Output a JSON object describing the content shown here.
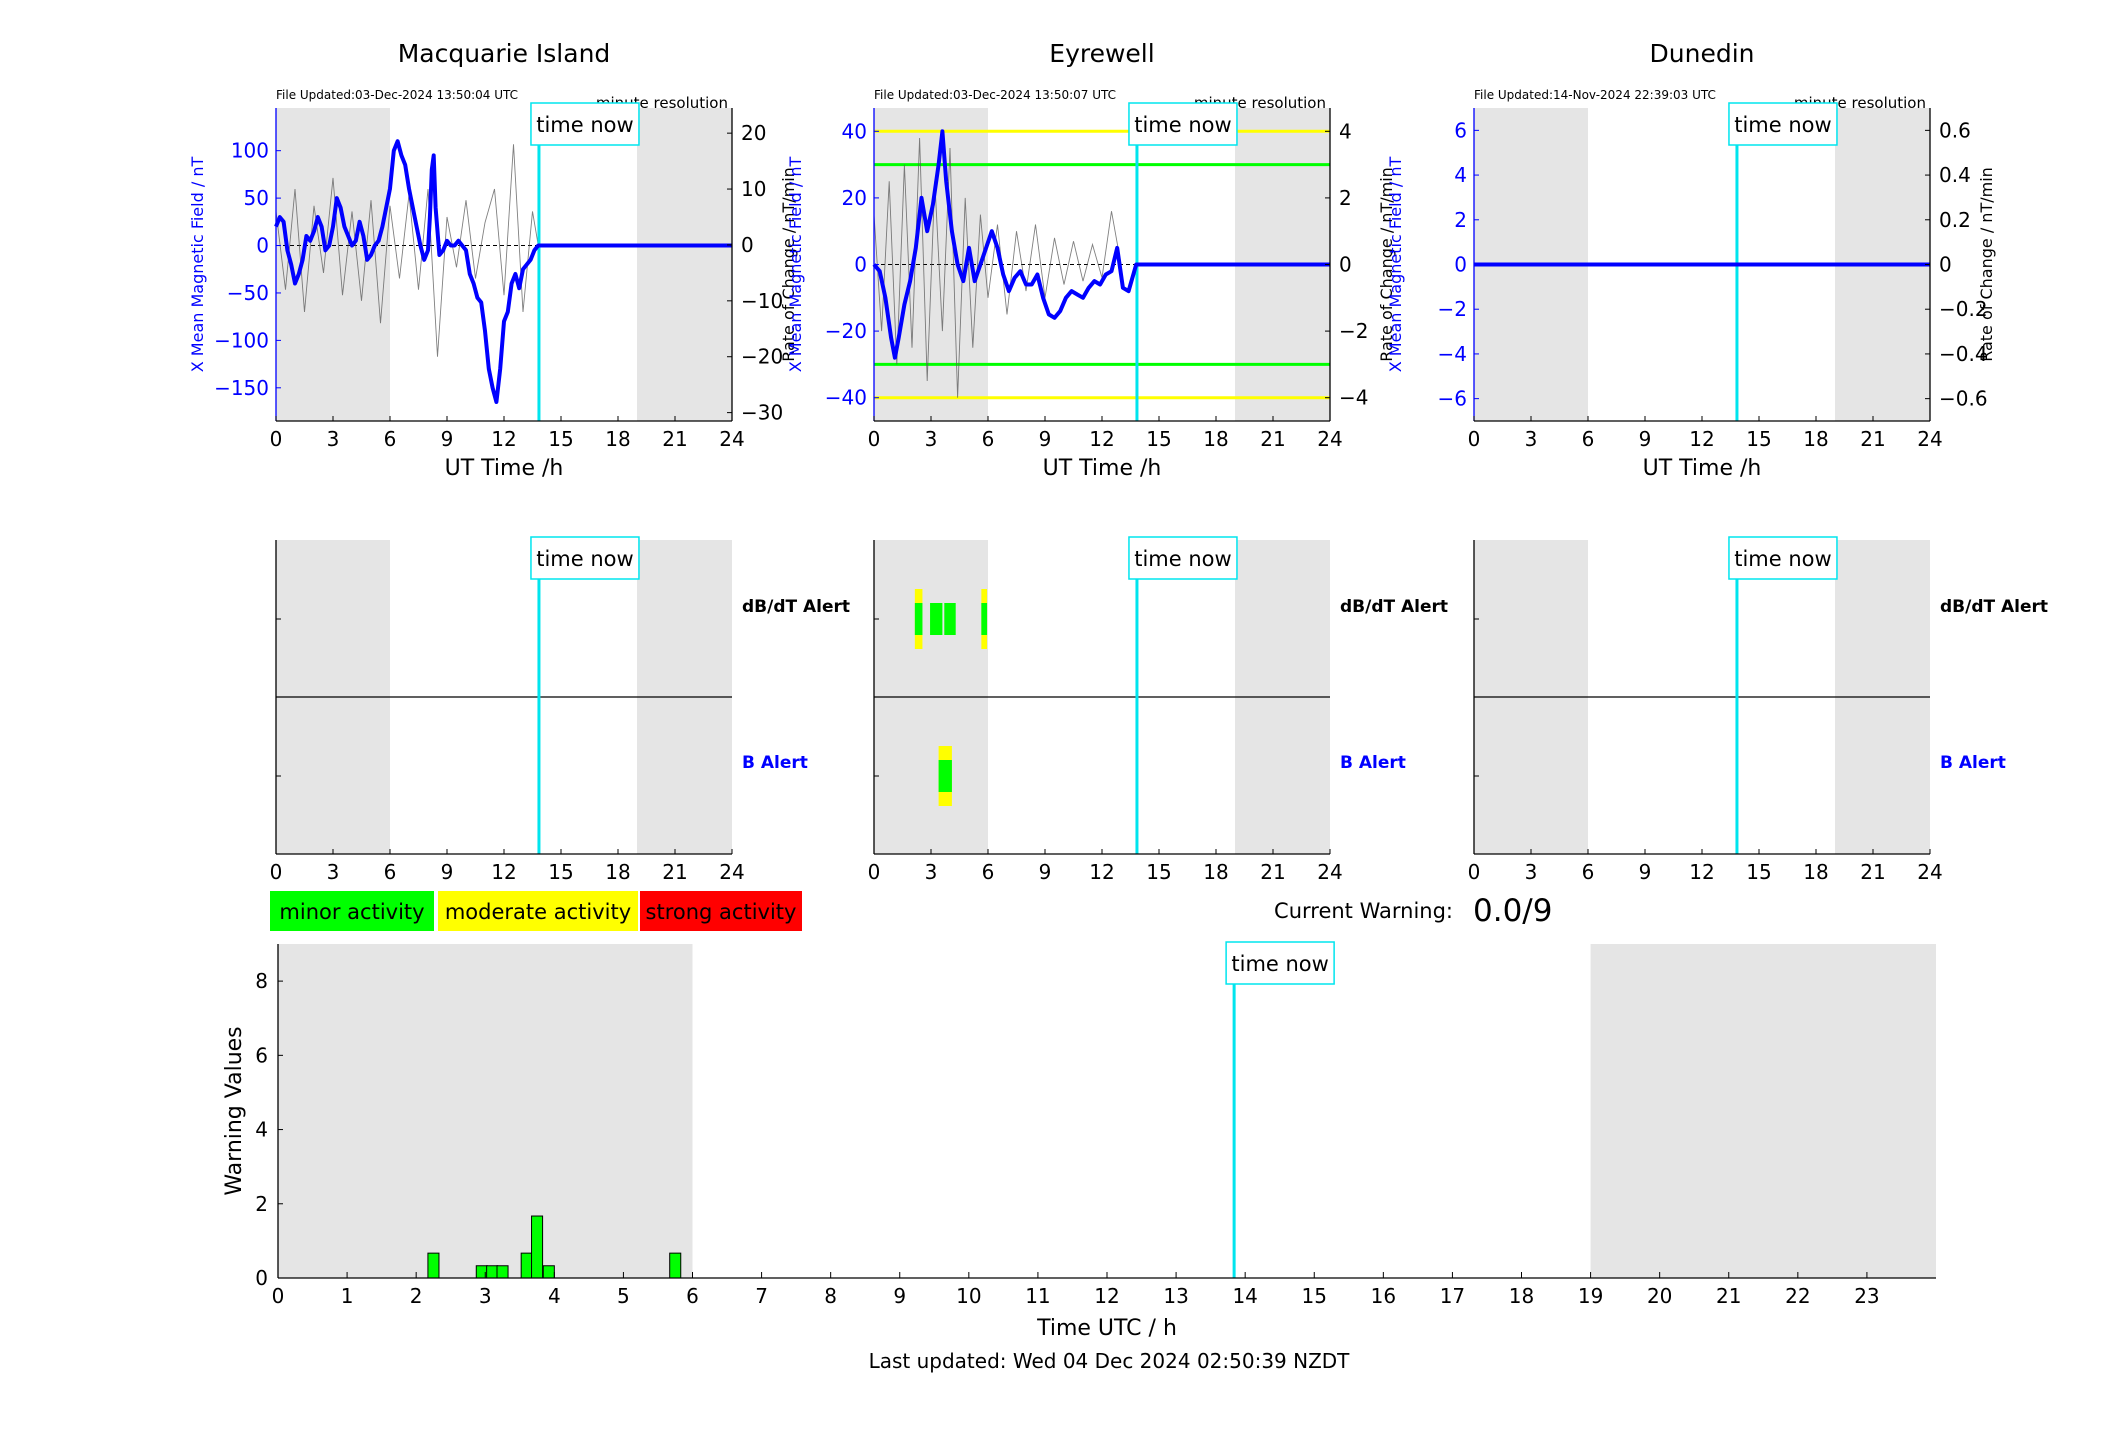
{
  "page": {
    "last_updated": "Last updated: Wed 04 Dec 2024 02:50:39 NZDT"
  },
  "common": {
    "time_now_label": "time now",
    "xlabel_top": "UT Time /h",
    "ylabel_left": "X Mean Magnetic Field / nT",
    "ylabel_right": "Rate of Change / nT/min",
    "resolution_label": "minute resolution",
    "dbdt_alert_label": "dB/dT Alert",
    "b_alert_label": "B Alert",
    "time_now_hour": 13.84,
    "night_shading_hours": [
      [
        0,
        6
      ],
      [
        19,
        24
      ]
    ],
    "x_ticks": [
      0,
      3,
      6,
      9,
      12,
      15,
      18,
      21,
      24
    ]
  },
  "legend": [
    {
      "label": "minor activity",
      "color": "#00ff00"
    },
    {
      "label": "moderate activity",
      "color": "#ffff00"
    },
    {
      "label": "strong activity",
      "color": "#ff0000"
    }
  ],
  "current_warning": {
    "label": "Current Warning:",
    "value": "0.0/9"
  },
  "chart_data": [
    {
      "type": "line",
      "title": "Macquarie Island",
      "file_updated": "File Updated:03-Dec-2024 13:50:04 UTC",
      "xlabel": "UT Time /h",
      "ylabel": "X Mean Magnetic Field / nT",
      "y2label": "Rate of Change / nT/min",
      "xlim": [
        0,
        24
      ],
      "ylim": [
        -185,
        145
      ],
      "y_ticks": [
        -150,
        -100,
        -50,
        0,
        50,
        100
      ],
      "y2lim": [
        -31.5,
        24.5
      ],
      "y2_ticks": [
        -30,
        -20,
        -10,
        0,
        10,
        20
      ],
      "thresholds": [],
      "series": [
        {
          "color": "#0000ff",
          "x": [
            0,
            0.2,
            0.4,
            0.6,
            0.8,
            1.0,
            1.2,
            1.4,
            1.6,
            1.8,
            2.0,
            2.2,
            2.4,
            2.6,
            2.8,
            3.0,
            3.2,
            3.4,
            3.6,
            3.8,
            4.0,
            4.2,
            4.4,
            4.6,
            4.8,
            5.0,
            5.2,
            5.4,
            5.6,
            5.8,
            6.0,
            6.2,
            6.4,
            6.6,
            6.8,
            7.0,
            7.2,
            7.4,
            7.6,
            7.8,
            8.0,
            8.1,
            8.2,
            8.3,
            8.4,
            8.6,
            8.8,
            9.0,
            9.2,
            9.4,
            9.6,
            9.8,
            10.0,
            10.2,
            10.4,
            10.6,
            10.8,
            11.0,
            11.2,
            11.4,
            11.6,
            11.8,
            12.0,
            12.2,
            12.4,
            12.6,
            12.8,
            13.0,
            13.2,
            13.4,
            13.6,
            13.8,
            14,
            16,
            18,
            20,
            22,
            24
          ],
          "y": [
            20,
            30,
            25,
            -5,
            -20,
            -40,
            -30,
            -15,
            10,
            5,
            15,
            30,
            20,
            -5,
            0,
            20,
            50,
            40,
            20,
            10,
            0,
            5,
            25,
            10,
            -15,
            -10,
            0,
            5,
            20,
            40,
            60,
            100,
            110,
            95,
            85,
            60,
            40,
            20,
            0,
            -15,
            -5,
            30,
            80,
            95,
            40,
            -10,
            -5,
            5,
            0,
            0,
            5,
            0,
            -5,
            -30,
            -40,
            -55,
            -60,
            -90,
            -130,
            -150,
            -165,
            -130,
            -80,
            -70,
            -40,
            -30,
            -45,
            -25,
            -20,
            -15,
            -5,
            0,
            0,
            0,
            0,
            0,
            0,
            0
          ]
        }
      ],
      "y2_series": {
        "color": "#555555",
        "x": [
          0,
          0.5,
          1.0,
          1.5,
          2.0,
          2.5,
          3.0,
          3.5,
          4.0,
          4.5,
          5.0,
          5.5,
          6.0,
          6.5,
          7.0,
          7.5,
          8.0,
          8.5,
          9.0,
          9.5,
          10.0,
          10.5,
          11.0,
          11.5,
          12.0,
          12.5,
          13.0,
          13.5,
          13.8
        ],
        "y": [
          6,
          -8,
          10,
          -12,
          7,
          -5,
          12,
          -9,
          6,
          -10,
          8,
          -14,
          7,
          -6,
          9,
          -8,
          10,
          -20,
          5,
          -4,
          8,
          -6,
          4,
          10,
          -9,
          18,
          -12,
          6,
          0
        ]
      }
    },
    {
      "type": "line",
      "title": "Eyrewell",
      "file_updated": "File Updated:03-Dec-2024 13:50:07 UTC",
      "xlabel": "UT Time /h",
      "ylabel": "X Mean Magnetic Field / nT",
      "y2label": "Rate of Change / nT/min",
      "xlim": [
        0,
        24
      ],
      "ylim": [
        -47,
        47
      ],
      "y_ticks": [
        -40,
        -20,
        0,
        20,
        40
      ],
      "y2lim": [
        -4.7,
        4.7
      ],
      "y2_ticks": [
        -4,
        -2,
        0,
        2,
        4
      ],
      "thresholds": [
        {
          "value": 40,
          "color": "#ffff00"
        },
        {
          "value": 30,
          "color": "#00ff00"
        },
        {
          "value": -30,
          "color": "#00ff00"
        },
        {
          "value": -40,
          "color": "#ffff00"
        }
      ],
      "series": [
        {
          "color": "#0000ff",
          "x": [
            0,
            0.3,
            0.6,
            0.9,
            1.1,
            1.3,
            1.6,
            1.9,
            2.2,
            2.5,
            2.8,
            3.1,
            3.4,
            3.6,
            3.8,
            4.1,
            4.4,
            4.7,
            5.0,
            5.3,
            5.6,
            5.9,
            6.2,
            6.5,
            6.8,
            7.1,
            7.4,
            7.7,
            8.0,
            8.3,
            8.6,
            8.9,
            9.2,
            9.5,
            9.8,
            10.1,
            10.4,
            10.7,
            11.0,
            11.3,
            11.6,
            11.9,
            12.2,
            12.5,
            12.8,
            13.1,
            13.4,
            13.8,
            16,
            18,
            20,
            22,
            24
          ],
          "y": [
            0,
            -2,
            -10,
            -22,
            -28,
            -22,
            -12,
            -5,
            5,
            20,
            10,
            18,
            30,
            40,
            25,
            10,
            0,
            -5,
            5,
            -5,
            0,
            5,
            10,
            5,
            -3,
            -8,
            -4,
            -2,
            -6,
            -6,
            -3,
            -10,
            -15,
            -16,
            -14,
            -10,
            -8,
            -9,
            -10,
            -7,
            -5,
            -6,
            -3,
            -2,
            5,
            -7,
            -8,
            0,
            0,
            0,
            0,
            0,
            0
          ]
        }
      ],
      "y2_series": {
        "color": "#555555",
        "x": [
          0,
          0.4,
          0.8,
          1.2,
          1.6,
          2.0,
          2.4,
          2.8,
          3.2,
          3.6,
          4.0,
          4.4,
          4.8,
          5.2,
          5.6,
          6.0,
          6.5,
          7.0,
          7.5,
          8.0,
          8.5,
          9.0,
          9.5,
          10.0,
          10.5,
          11.0,
          11.5,
          12.0,
          12.5,
          13.0
        ],
        "y": [
          1.5,
          -2,
          2.5,
          -3,
          3,
          -2.5,
          3.8,
          -3.5,
          2.5,
          -2,
          3.5,
          -4,
          2,
          -2.5,
          1.5,
          -1,
          1.2,
          -1.5,
          1,
          -0.8,
          1.2,
          -1,
          0.8,
          -0.6,
          0.7,
          -0.5,
          0.6,
          -0.4,
          1.6,
          0
        ]
      }
    },
    {
      "type": "line",
      "title": "Dunedin",
      "file_updated": "File Updated:14-Nov-2024 22:39:03 UTC",
      "xlabel": "UT Time /h",
      "ylabel": "X Mean Magnetic Field / nT",
      "y2label": "Rate of Change / nT/min",
      "xlim": [
        0,
        24
      ],
      "ylim": [
        -7,
        7
      ],
      "y_ticks": [
        -6,
        -4,
        -2,
        0,
        2,
        4,
        6
      ],
      "y2lim": [
        -0.7,
        0.7
      ],
      "y2_ticks": [
        -0.6,
        -0.4,
        -0.2,
        0,
        0.2,
        0.4,
        0.6
      ],
      "thresholds": [],
      "series": [
        {
          "color": "#0000ff",
          "x": [
            0,
            24
          ],
          "y": [
            0,
            0
          ]
        }
      ],
      "y2_series": {
        "color": "#555555",
        "x": [],
        "y": []
      }
    },
    {
      "type": "bar",
      "title": "",
      "xlabel": "",
      "ylabel": "",
      "xlim": [
        0,
        24
      ],
      "x_ticks": [
        0,
        3,
        6,
        9,
        12,
        15,
        18,
        21,
        24
      ],
      "rows": [
        "dB/dT Alert",
        "B Alert"
      ],
      "alerts": [
        {
          "row": "dB/dT Alert",
          "segments": []
        },
        {
          "row": "B Alert",
          "segments": []
        }
      ]
    },
    {
      "type": "bar",
      "title": "",
      "xlabel": "",
      "ylabel": "",
      "xlim": [
        0,
        24
      ],
      "x_ticks": [
        0,
        3,
        6,
        9,
        12,
        15,
        18,
        21,
        24
      ],
      "rows": [
        "dB/dT Alert",
        "B Alert"
      ],
      "alerts": [
        {
          "row": "dB/dT Alert",
          "segments": [
            {
              "start": 2.15,
              "end": 2.55,
              "level": "minor",
              "edge": "moderate"
            },
            {
              "start": 2.95,
              "end": 3.6,
              "level": "minor",
              "edge": "none"
            },
            {
              "start": 3.7,
              "end": 4.3,
              "level": "minor",
              "edge": "none"
            },
            {
              "start": 5.65,
              "end": 5.95,
              "level": "minor",
              "edge": "moderate"
            }
          ]
        },
        {
          "row": "B Alert",
          "segments": [
            {
              "start": 3.4,
              "end": 4.1,
              "level": "minor",
              "edge": "moderate"
            }
          ]
        }
      ]
    },
    {
      "type": "bar",
      "title": "",
      "xlabel": "",
      "ylabel": "",
      "xlim": [
        0,
        24
      ],
      "x_ticks": [
        0,
        3,
        6,
        9,
        12,
        15,
        18,
        21,
        24
      ],
      "rows": [
        "dB/dT Alert",
        "B Alert"
      ],
      "alerts": [
        {
          "row": "dB/dT Alert",
          "segments": []
        },
        {
          "row": "B Alert",
          "segments": []
        }
      ]
    },
    {
      "type": "bar",
      "title": "",
      "xlabel": "Time UTC / h",
      "ylabel": "Warning Values",
      "xlim": [
        0,
        24
      ],
      "ylim": [
        0,
        9
      ],
      "x_ticks": [
        0,
        1,
        2,
        3,
        4,
        5,
        6,
        7,
        8,
        9,
        10,
        11,
        12,
        13,
        14,
        15,
        16,
        17,
        18,
        19,
        20,
        21,
        22,
        23
      ],
      "y_ticks": [
        0,
        2,
        4,
        6,
        8
      ],
      "bar_width": 0.16,
      "color": "#00ff00",
      "x": [
        2.25,
        2.95,
        3.1,
        3.25,
        3.6,
        3.75,
        3.92,
        5.75
      ],
      "values": [
        0.67,
        0.33,
        0.33,
        0.33,
        0.67,
        1.67,
        0.33,
        0.67
      ]
    }
  ]
}
